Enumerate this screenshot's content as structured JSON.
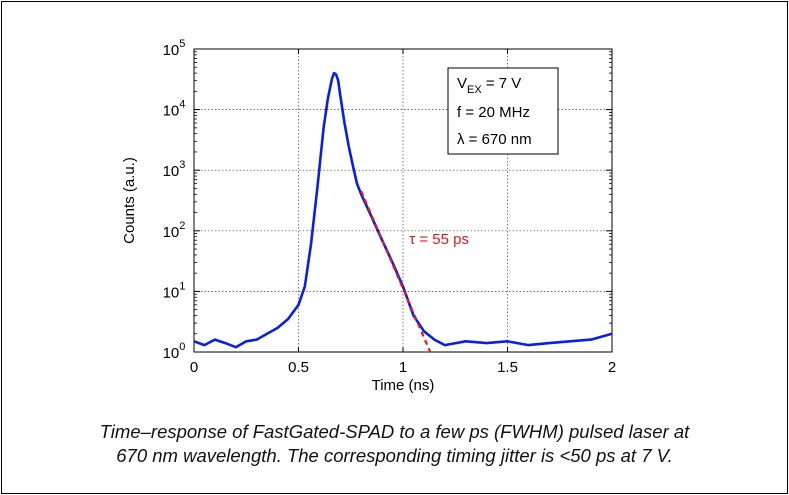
{
  "chart_data": {
    "type": "line",
    "xlabel": "Time (ns)",
    "ylabel": "Counts (a.u.)",
    "xlim": [
      0,
      2
    ],
    "ylim": [
      1,
      100000
    ],
    "y_scale": "log",
    "grid": true,
    "x_ticks": [
      "0",
      "0.5",
      "1",
      "1.5",
      "2"
    ],
    "y_tick_values": [
      1,
      10,
      100,
      1000,
      10000,
      100000
    ],
    "y_tick_exponents": [
      "0",
      "1",
      "2",
      "3",
      "4",
      "5"
    ],
    "series": [
      {
        "color": "#0a1ee6",
        "style": "solid",
        "x": [
          0.0,
          0.05,
          0.1,
          0.15,
          0.2,
          0.25,
          0.3,
          0.35,
          0.4,
          0.45,
          0.5,
          0.53,
          0.56,
          0.59,
          0.62,
          0.64,
          0.66,
          0.67,
          0.68,
          0.69,
          0.7,
          0.72,
          0.74,
          0.76,
          0.78,
          0.8,
          0.85,
          0.9,
          0.95,
          1.0,
          1.05,
          1.1,
          1.15,
          1.2,
          1.3,
          1.4,
          1.5,
          1.6,
          1.7,
          1.8,
          1.9,
          2.0
        ],
        "y": [
          1.5,
          1.3,
          1.6,
          1.4,
          1.2,
          1.5,
          1.6,
          2.0,
          2.5,
          3.5,
          6.0,
          12,
          60,
          500,
          5000,
          15000,
          32000,
          40000,
          38000,
          30000,
          17000,
          6000,
          2500,
          1200,
          600,
          400,
          170,
          70,
          30,
          12,
          4,
          2.2,
          1.6,
          1.3,
          1.5,
          1.4,
          1.5,
          1.3,
          1.4,
          1.5,
          1.6,
          2.0
        ]
      },
      {
        "color": "#e31a1c",
        "style": "dashed",
        "x": [
          0.8,
          1.13
        ],
        "y": [
          450,
          1.0
        ]
      }
    ],
    "annotations": {
      "tau_label": "τ = 55 ps",
      "legend_box": {
        "line1_main": "V",
        "line1_sub": "EX",
        "line1_rest": " = 7 V",
        "line2": "f = 20 MHz",
        "line3": "λ = 670 nm"
      }
    }
  },
  "caption": {
    "line1": "Time–response of FastGated-SPAD to a few ps (FWHM) pulsed laser at",
    "line2": "670 nm wavelength. The corresponding timing jitter is <50 ps at 7 V."
  }
}
